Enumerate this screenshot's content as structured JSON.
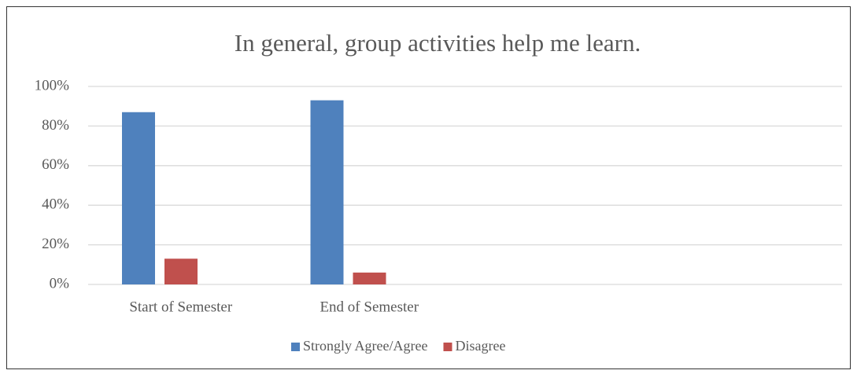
{
  "chart_data": {
    "type": "bar",
    "title": "In general, group activities help me learn.",
    "categories": [
      "Start of Semester",
      "End of Semester",
      null,
      null
    ],
    "series": [
      {
        "name": "Strongly Agree/Agree",
        "color": "#4f81bd",
        "values": [
          87,
          93,
          null,
          null
        ]
      },
      {
        "name": "Disagree",
        "color": "#c0504d",
        "values": [
          13,
          6,
          null,
          null
        ]
      }
    ],
    "ylim": [
      0,
      100
    ],
    "yticks": [
      {
        "value": 0,
        "label": "0%"
      },
      {
        "value": 20,
        "label": "20%"
      },
      {
        "value": 40,
        "label": "40%"
      },
      {
        "value": 60,
        "label": "60%"
      },
      {
        "value": 80,
        "label": "80%"
      },
      {
        "value": 100,
        "label": "100%"
      }
    ],
    "grid": true,
    "legend": "bottom"
  }
}
